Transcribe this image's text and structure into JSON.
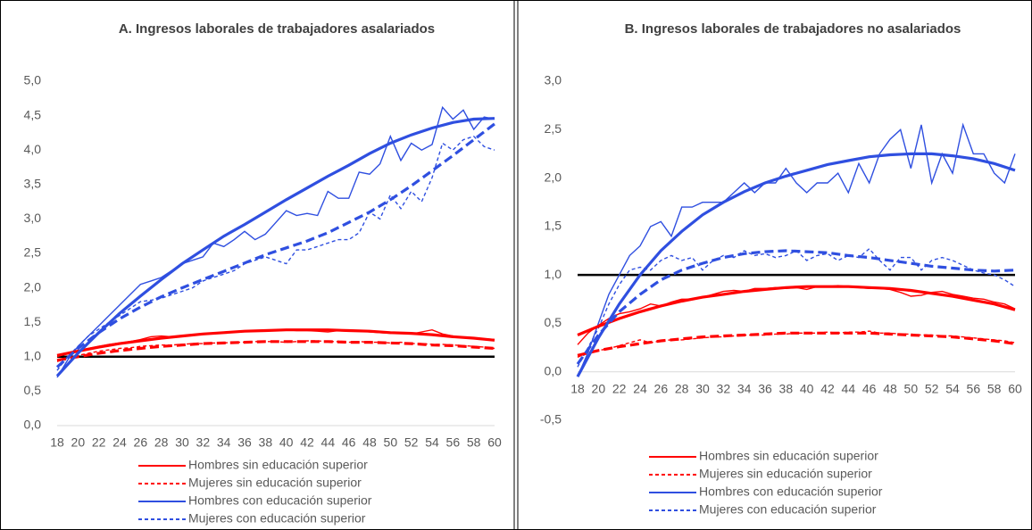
{
  "chart_data": [
    {
      "type": "line",
      "title": "A. Ingresos laborales de trabajadores  asalariados",
      "x": [
        18,
        19,
        20,
        21,
        22,
        23,
        24,
        25,
        26,
        27,
        28,
        29,
        30,
        31,
        32,
        33,
        34,
        35,
        36,
        37,
        38,
        39,
        40,
        41,
        42,
        43,
        44,
        45,
        46,
        47,
        48,
        49,
        50,
        51,
        52,
        53,
        54,
        55,
        56,
        57,
        58,
        59,
        60
      ],
      "xlim": [
        18,
        60
      ],
      "xticks": [
        18,
        20,
        22,
        24,
        26,
        28,
        30,
        32,
        34,
        36,
        38,
        40,
        42,
        44,
        46,
        48,
        50,
        52,
        54,
        56,
        58,
        60
      ],
      "ylim": [
        0,
        5
      ],
      "yticks": [
        {
          "value": 0,
          "label": "0,0"
        },
        {
          "value": 0.5,
          "label": "0,5"
        },
        {
          "value": 1,
          "label": "1,0"
        },
        {
          "value": 1.5,
          "label": "1,5"
        },
        {
          "value": 2,
          "label": "2,0"
        },
        {
          "value": 2.5,
          "label": "2,5"
        },
        {
          "value": 3,
          "label": "3,0"
        },
        {
          "value": 3.5,
          "label": "3,5"
        },
        {
          "value": 4,
          "label": "4,0"
        },
        {
          "value": 4.5,
          "label": "4,5"
        },
        {
          "value": 5,
          "label": "5,0"
        }
      ],
      "reference_line": 1,
      "trend_x": [
        18,
        20,
        22,
        24,
        26,
        28,
        30,
        32,
        34,
        36,
        38,
        40,
        42,
        44,
        46,
        48,
        50,
        52,
        54,
        56,
        58,
        60
      ],
      "series": [
        {
          "name": "Hombres sin educación superior",
          "color": "#ff0000",
          "dashed": false,
          "values": [
            1.0,
            1.05,
            1.08,
            1.12,
            1.15,
            1.18,
            1.2,
            1.22,
            1.25,
            1.29,
            1.3,
            1.29,
            1.3,
            1.32,
            1.33,
            1.34,
            1.35,
            1.36,
            1.37,
            1.37,
            1.38,
            1.38,
            1.39,
            1.38,
            1.38,
            1.37,
            1.36,
            1.38,
            1.37,
            1.38,
            1.36,
            1.35,
            1.34,
            1.35,
            1.33,
            1.36,
            1.39,
            1.33,
            1.3,
            1.28,
            1.27,
            1.26,
            1.25
          ],
          "trend": [
            1.02,
            1.08,
            1.14,
            1.19,
            1.23,
            1.27,
            1.3,
            1.33,
            1.35,
            1.37,
            1.38,
            1.39,
            1.39,
            1.39,
            1.38,
            1.37,
            1.35,
            1.34,
            1.32,
            1.29,
            1.27,
            1.24
          ]
        },
        {
          "name": "Mujeres sin educación superior",
          "color": "#ff0000",
          "dashed": true,
          "values": [
            0.93,
            0.98,
            1.02,
            1.05,
            1.08,
            1.1,
            1.12,
            1.13,
            1.15,
            1.16,
            1.17,
            1.17,
            1.18,
            1.19,
            1.19,
            1.2,
            1.2,
            1.21,
            1.21,
            1.22,
            1.22,
            1.22,
            1.21,
            1.22,
            1.23,
            1.23,
            1.22,
            1.22,
            1.21,
            1.22,
            1.21,
            1.21,
            1.2,
            1.21,
            1.19,
            1.19,
            1.18,
            1.18,
            1.17,
            1.16,
            1.15,
            1.14,
            1.12
          ],
          "trend": [
            0.95,
            1.0,
            1.05,
            1.09,
            1.12,
            1.15,
            1.17,
            1.19,
            1.2,
            1.21,
            1.22,
            1.22,
            1.22,
            1.22,
            1.21,
            1.21,
            1.2,
            1.19,
            1.17,
            1.16,
            1.14,
            1.12
          ]
        },
        {
          "name": "Hombres con educación superior",
          "color": "#2f4fe0",
          "dashed": false,
          "values": [
            0.7,
            0.95,
            1.15,
            1.3,
            1.45,
            1.6,
            1.75,
            1.9,
            2.05,
            2.1,
            2.15,
            2.25,
            2.35,
            2.4,
            2.45,
            2.65,
            2.6,
            2.7,
            2.82,
            2.7,
            2.78,
            2.95,
            3.12,
            3.05,
            3.08,
            3.05,
            3.4,
            3.3,
            3.3,
            3.68,
            3.65,
            3.8,
            4.2,
            3.85,
            4.1,
            4.0,
            4.08,
            4.62,
            4.45,
            4.58,
            4.3,
            4.48,
            4.45
          ],
          "trend": [
            0.72,
            1.05,
            1.35,
            1.63,
            1.88,
            2.12,
            2.35,
            2.55,
            2.75,
            2.92,
            3.1,
            3.28,
            3.45,
            3.62,
            3.78,
            3.95,
            4.1,
            4.22,
            4.32,
            4.4,
            4.45,
            4.46
          ]
        },
        {
          "name": "Mujeres con educación superior",
          "color": "#2f4fe0",
          "dashed": true,
          "values": [
            0.8,
            1.0,
            1.15,
            1.3,
            1.4,
            1.5,
            1.6,
            1.7,
            1.8,
            1.82,
            1.85,
            1.9,
            1.95,
            2.0,
            2.1,
            2.15,
            2.2,
            2.25,
            2.35,
            2.4,
            2.45,
            2.4,
            2.35,
            2.55,
            2.55,
            2.6,
            2.65,
            2.7,
            2.7,
            2.8,
            3.1,
            3.0,
            3.35,
            3.15,
            3.4,
            3.25,
            3.6,
            4.1,
            4.0,
            4.15,
            4.2,
            4.05,
            4.0
          ],
          "trend": [
            0.85,
            1.12,
            1.35,
            1.55,
            1.72,
            1.87,
            2.0,
            2.12,
            2.24,
            2.36,
            2.48,
            2.58,
            2.68,
            2.8,
            2.95,
            3.1,
            3.28,
            3.48,
            3.7,
            3.92,
            4.15,
            4.38
          ]
        }
      ]
    },
    {
      "type": "line",
      "title": "B. Ingresos laborales de trabajadores  no asalariados",
      "x": [
        18,
        19,
        20,
        21,
        22,
        23,
        24,
        25,
        26,
        27,
        28,
        29,
        30,
        31,
        32,
        33,
        34,
        35,
        36,
        37,
        38,
        39,
        40,
        41,
        42,
        43,
        44,
        45,
        46,
        47,
        48,
        49,
        50,
        51,
        52,
        53,
        54,
        55,
        56,
        57,
        58,
        59,
        60
      ],
      "xlim": [
        18,
        60
      ],
      "xticks": [
        18,
        20,
        22,
        24,
        26,
        28,
        30,
        32,
        34,
        36,
        38,
        40,
        42,
        44,
        46,
        48,
        50,
        52,
        54,
        56,
        58,
        60
      ],
      "ylim": [
        -0.5,
        3
      ],
      "yticks": [
        {
          "value": -0.5,
          "label": "-0,5"
        },
        {
          "value": 0,
          "label": "0,0"
        },
        {
          "value": 0.5,
          "label": "0,5"
        },
        {
          "value": 1,
          "label": "1,0"
        },
        {
          "value": 1.5,
          "label": "1,5"
        },
        {
          "value": 2,
          "label": "2,0"
        },
        {
          "value": 2.5,
          "label": "2,5"
        },
        {
          "value": 3,
          "label": "3,0"
        }
      ],
      "reference_line": 1,
      "trend_x": [
        18,
        20,
        22,
        24,
        26,
        28,
        30,
        32,
        34,
        36,
        38,
        40,
        42,
        44,
        46,
        48,
        50,
        52,
        54,
        56,
        58,
        60
      ],
      "series": [
        {
          "name": "Hombres sin educación superior",
          "color": "#ff0000",
          "dashed": false,
          "values": [
            0.28,
            0.4,
            0.48,
            0.55,
            0.6,
            0.62,
            0.65,
            0.7,
            0.68,
            0.72,
            0.75,
            0.75,
            0.77,
            0.8,
            0.83,
            0.84,
            0.83,
            0.86,
            0.86,
            0.87,
            0.86,
            0.87,
            0.85,
            0.88,
            0.88,
            0.89,
            0.88,
            0.87,
            0.86,
            0.86,
            0.85,
            0.82,
            0.78,
            0.79,
            0.82,
            0.83,
            0.8,
            0.78,
            0.76,
            0.75,
            0.72,
            0.7,
            0.65
          ],
          "trend": [
            0.38,
            0.47,
            0.55,
            0.62,
            0.68,
            0.73,
            0.77,
            0.8,
            0.83,
            0.85,
            0.87,
            0.88,
            0.88,
            0.88,
            0.87,
            0.86,
            0.84,
            0.81,
            0.78,
            0.74,
            0.7,
            0.64
          ]
        },
        {
          "name": "Mujeres sin educación superior",
          "color": "#ff0000",
          "dashed": true,
          "values": [
            0.15,
            0.2,
            0.22,
            0.24,
            0.27,
            0.3,
            0.33,
            0.3,
            0.32,
            0.33,
            0.33,
            0.34,
            0.35,
            0.36,
            0.36,
            0.37,
            0.38,
            0.38,
            0.38,
            0.39,
            0.39,
            0.4,
            0.4,
            0.4,
            0.41,
            0.4,
            0.41,
            0.41,
            0.42,
            0.4,
            0.4,
            0.39,
            0.39,
            0.38,
            0.38,
            0.37,
            0.37,
            0.36,
            0.35,
            0.34,
            0.33,
            0.32,
            0.3
          ],
          "trend": [
            0.17,
            0.22,
            0.26,
            0.29,
            0.32,
            0.34,
            0.36,
            0.37,
            0.38,
            0.39,
            0.4,
            0.4,
            0.4,
            0.4,
            0.4,
            0.39,
            0.38,
            0.37,
            0.36,
            0.34,
            0.32,
            0.29
          ]
        },
        {
          "name": "Hombres con educación superior",
          "color": "#2f4fe0",
          "dashed": false,
          "values": [
            -0.05,
            0.2,
            0.5,
            0.8,
            1.0,
            1.2,
            1.3,
            1.5,
            1.55,
            1.4,
            1.7,
            1.7,
            1.75,
            1.75,
            1.75,
            1.85,
            1.95,
            1.85,
            1.95,
            1.95,
            2.1,
            1.95,
            1.85,
            1.95,
            1.95,
            2.05,
            1.85,
            2.15,
            1.95,
            2.25,
            2.4,
            2.5,
            2.1,
            2.55,
            1.95,
            2.25,
            2.05,
            2.55,
            2.25,
            2.25,
            2.05,
            1.95,
            2.25
          ],
          "trend": [
            -0.05,
            0.35,
            0.7,
            1.0,
            1.25,
            1.45,
            1.62,
            1.75,
            1.86,
            1.95,
            2.02,
            2.08,
            2.14,
            2.18,
            2.22,
            2.24,
            2.25,
            2.25,
            2.23,
            2.2,
            2.15,
            2.08
          ]
        },
        {
          "name": "Mujeres con educación superior",
          "color": "#2f4fe0",
          "dashed": true,
          "values": [
            0.05,
            0.25,
            0.45,
            0.7,
            0.9,
            1.05,
            1.08,
            1.05,
            1.15,
            1.2,
            1.15,
            1.18,
            1.05,
            1.15,
            1.2,
            1.18,
            1.25,
            1.2,
            1.22,
            1.18,
            1.2,
            1.25,
            1.15,
            1.2,
            1.22,
            1.15,
            1.2,
            1.18,
            1.27,
            1.15,
            1.05,
            1.18,
            1.18,
            1.05,
            1.15,
            1.18,
            1.15,
            1.1,
            1.05,
            1.02,
            1.0,
            0.95,
            0.88
          ],
          "trend": [
            0.08,
            0.38,
            0.62,
            0.8,
            0.95,
            1.05,
            1.12,
            1.18,
            1.22,
            1.24,
            1.25,
            1.24,
            1.23,
            1.2,
            1.18,
            1.15,
            1.12,
            1.09,
            1.07,
            1.05,
            1.04,
            1.05
          ]
        }
      ]
    }
  ]
}
